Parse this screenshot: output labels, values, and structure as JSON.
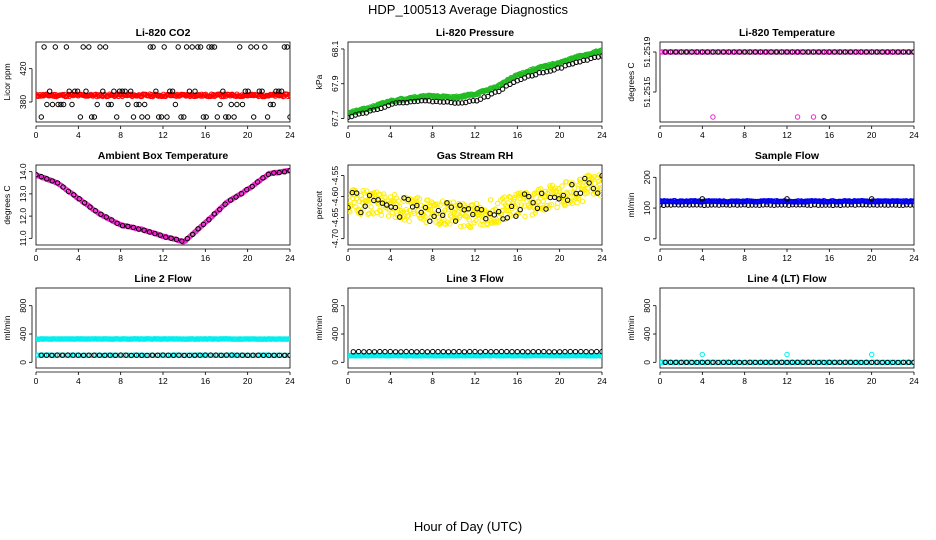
{
  "figure": {
    "title": "HDP_100513  Average Diagnostics",
    "xlabel": "Hour of Day (UTC)"
  },
  "chart_data": [
    {
      "type": "scatter",
      "title": "Li-820 CO2",
      "ylabel": "Licor ppm",
      "xlim": [
        0,
        24
      ],
      "ylim": [
        356,
        452
      ],
      "xticks": [
        "0",
        "4",
        "8",
        "12",
        "16",
        "20",
        "24"
      ],
      "yticks": [
        380,
        420
      ],
      "ytick_labels": [
        "380",
        "420"
      ],
      "series": [
        {
          "color": "#ff0000",
          "pattern": "dense-band",
          "x_range": [
            0,
            24
          ],
          "y_center": 388,
          "y_spread": 1.5,
          "n": 260,
          "seed": 11
        },
        {
          "color": "#000000",
          "pattern": "levels",
          "x_range": [
            0.5,
            24
          ],
          "y_levels": [
            362,
            377,
            393,
            446
          ],
          "n": 90,
          "seed": 3
        }
      ]
    },
    {
      "type": "scatter",
      "title": "Li-820 Pressure",
      "ylabel": "kPa",
      "xlim": [
        0,
        24
      ],
      "ylim": [
        67.68,
        68.14
      ],
      "xticks": [
        "0",
        "4",
        "8",
        "12",
        "16",
        "20",
        "24"
      ],
      "yticks": [
        67.7,
        67.9,
        68.1
      ],
      "ytick_labels": [
        "67.7",
        "67.9",
        "68.1"
      ],
      "series": [
        {
          "color": "#22bb22",
          "pattern": "curve",
          "x": [
            0,
            2,
            4,
            6,
            8,
            10,
            12,
            14,
            16,
            18,
            20,
            22,
            24
          ],
          "y": [
            67.73,
            67.76,
            67.8,
            67.82,
            67.83,
            67.82,
            67.84,
            67.88,
            67.95,
            67.99,
            68.02,
            68.06,
            68.09
          ],
          "spread": 0.006,
          "n": 300,
          "seed": 21
        },
        {
          "color": "#000000",
          "pattern": "curve",
          "x": [
            0,
            2,
            4,
            6,
            8,
            10,
            12,
            14,
            16,
            18,
            20,
            22,
            24
          ],
          "y": [
            67.71,
            67.74,
            67.78,
            67.8,
            67.8,
            67.79,
            67.8,
            67.85,
            67.92,
            67.96,
            67.99,
            68.03,
            68.06
          ],
          "spread": 0.004,
          "n": 70,
          "seed": 22
        }
      ]
    },
    {
      "type": "scatter",
      "title": "Li-820 Temperature",
      "ylabel": "degrees C",
      "xlim": [
        0,
        24
      ],
      "ylim": [
        51.2512,
        51.252
      ],
      "xticks": [
        "0",
        "4",
        "8",
        "12",
        "16",
        "20",
        "24"
      ],
      "yticks": [
        51.2515,
        51.2519
      ],
      "ytick_labels": [
        "51.2515",
        "51.2519"
      ],
      "series": [
        {
          "color": "#ee22cc",
          "pattern": "curve",
          "x": [
            0,
            24
          ],
          "y": [
            51.2519,
            51.2519
          ],
          "spread": 0,
          "n": 120,
          "seed": 31
        },
        {
          "color": "#000000",
          "pattern": "curve",
          "x": [
            0.5,
            24
          ],
          "y": [
            51.2519,
            51.2519
          ],
          "spread": 0,
          "n": 48,
          "seed": 32
        },
        {
          "color": "#ee22cc",
          "pattern": "points",
          "x": [
            5,
            13,
            14.5
          ],
          "y": [
            51.25125,
            51.25125,
            51.25125
          ]
        },
        {
          "color": "#000000",
          "pattern": "points",
          "x": [
            15.5
          ],
          "y": [
            51.25125
          ]
        }
      ]
    },
    {
      "type": "scatter",
      "title": "Ambient Box Temperature",
      "ylabel": "degrees C",
      "xlim": [
        0,
        24
      ],
      "ylim": [
        10.7,
        14.3
      ],
      "xticks": [
        "0",
        "4",
        "8",
        "12",
        "16",
        "20",
        "24"
      ],
      "yticks": [
        11.0,
        12.0,
        13.0,
        14.0
      ],
      "ytick_labels": [
        "11.0",
        "12.0",
        "13.0",
        "14.0"
      ],
      "series": [
        {
          "color": "#ee22cc",
          "pattern": "curve",
          "x": [
            0,
            2,
            4,
            6,
            8,
            10,
            12,
            14,
            16,
            18,
            20,
            22,
            24
          ],
          "y": [
            13.85,
            13.5,
            12.8,
            12.1,
            11.6,
            11.4,
            11.1,
            10.85,
            11.7,
            12.6,
            13.2,
            13.9,
            14.05
          ],
          "spread": 0.02,
          "n": 220,
          "seed": 41
        },
        {
          "color": "#000000",
          "pattern": "curve",
          "x": [
            0,
            2,
            4,
            6,
            8,
            10,
            12,
            14,
            16,
            18,
            20,
            22,
            24
          ],
          "y": [
            13.85,
            13.5,
            12.8,
            12.1,
            11.6,
            11.4,
            11.1,
            10.85,
            11.7,
            12.6,
            13.2,
            13.9,
            14.05
          ],
          "spread": 0.02,
          "n": 48,
          "seed": 42
        }
      ]
    },
    {
      "type": "scatter",
      "title": "Gas Stream RH",
      "ylabel": "percent",
      "xlim": [
        0,
        24
      ],
      "ylim": [
        -4.715,
        -4.525
      ],
      "xticks": [
        "0",
        "4",
        "8",
        "12",
        "16",
        "20",
        "24"
      ],
      "yticks": [
        -4.7,
        -4.65,
        -4.6,
        -4.55
      ],
      "ytick_labels": [
        "-4.70",
        "-4.65",
        "-4.60",
        "-4.55"
      ],
      "series": [
        {
          "color": "#ffee00",
          "pattern": "noise",
          "x": [
            0,
            6,
            12,
            18,
            24
          ],
          "y": [
            -4.61,
            -4.63,
            -4.645,
            -4.61,
            -4.57
          ],
          "spread": 0.03,
          "n": 420,
          "seed": 51
        },
        {
          "color": "#000000",
          "pattern": "noise",
          "x": [
            0,
            6,
            12,
            18,
            24
          ],
          "y": [
            -4.61,
            -4.63,
            -4.645,
            -4.61,
            -4.57
          ],
          "spread": 0.025,
          "n": 60,
          "seed": 52
        }
      ]
    },
    {
      "type": "scatter",
      "title": "Sample Flow",
      "ylabel": "ml/min",
      "xlim": [
        0,
        24
      ],
      "ylim": [
        -20,
        240
      ],
      "xticks": [
        "0",
        "4",
        "8",
        "12",
        "16",
        "20",
        "24"
      ],
      "yticks": [
        0,
        100,
        200
      ],
      "ytick_labels": [
        "0",
        "100",
        "200"
      ],
      "series": [
        {
          "color": "#000000",
          "pattern": "curve",
          "x": [
            0,
            24
          ],
          "y": [
            110,
            110
          ],
          "spread": 1,
          "n": 70,
          "seed": 61
        },
        {
          "color": "#0000ee",
          "pattern": "curve",
          "x": [
            0,
            24
          ],
          "y": [
            122,
            122
          ],
          "spread": 2,
          "n": 240,
          "seed": 62
        },
        {
          "color": "#000000",
          "pattern": "points",
          "x": [
            4,
            12,
            20
          ],
          "y": [
            130,
            130,
            130
          ]
        }
      ]
    },
    {
      "type": "scatter",
      "title": "Line 2 Flow",
      "ylabel": "ml/min",
      "xlim": [
        0,
        24
      ],
      "ylim": [
        -80,
        1050
      ],
      "xticks": [
        "0",
        "4",
        "8",
        "12",
        "16",
        "20",
        "24"
      ],
      "yticks": [
        0,
        400,
        800
      ],
      "ytick_labels": [
        "0",
        "400",
        "800"
      ],
      "series": [
        {
          "color": "#00eeee",
          "pattern": "curve",
          "x": [
            0,
            24
          ],
          "y": [
            330,
            330
          ],
          "spread": 3,
          "n": 240,
          "seed": 71
        },
        {
          "color": "#00eeee",
          "pattern": "curve",
          "x": [
            0,
            24
          ],
          "y": [
            100,
            100
          ],
          "spread": 2,
          "n": 120,
          "seed": 72
        },
        {
          "color": "#000000",
          "pattern": "curve",
          "x": [
            0.5,
            24
          ],
          "y": [
            100,
            100
          ],
          "spread": 2,
          "n": 48,
          "seed": 73
        }
      ]
    },
    {
      "type": "scatter",
      "title": "Line 3 Flow",
      "ylabel": "ml/min",
      "xlim": [
        0,
        24
      ],
      "ylim": [
        -80,
        1050
      ],
      "xticks": [
        "0",
        "4",
        "8",
        "12",
        "16",
        "20",
        "24"
      ],
      "yticks": [
        0,
        400,
        800
      ],
      "ytick_labels": [
        "0",
        "400",
        "800"
      ],
      "series": [
        {
          "color": "#00eeee",
          "pattern": "curve",
          "x": [
            0,
            24
          ],
          "y": [
            95,
            95
          ],
          "spread": 3,
          "n": 240,
          "seed": 81
        },
        {
          "color": "#000000",
          "pattern": "curve",
          "x": [
            0.5,
            24
          ],
          "y": [
            150,
            150
          ],
          "spread": 2,
          "n": 48,
          "seed": 82
        }
      ]
    },
    {
      "type": "scatter",
      "title": "Line 4 (LT) Flow",
      "ylabel": "ml/min",
      "xlim": [
        0,
        24
      ],
      "ylim": [
        -80,
        1050
      ],
      "xticks": [
        "0",
        "4",
        "8",
        "12",
        "16",
        "20",
        "24"
      ],
      "yticks": [
        0,
        400,
        800
      ],
      "ytick_labels": [
        "0",
        "400",
        "800"
      ],
      "series": [
        {
          "color": "#00eeee",
          "pattern": "curve",
          "x": [
            0,
            24
          ],
          "y": [
            0,
            0
          ],
          "spread": 2,
          "n": 120,
          "seed": 91
        },
        {
          "color": "#000000",
          "pattern": "curve",
          "x": [
            0.5,
            24
          ],
          "y": [
            0,
            0
          ],
          "spread": 1,
          "n": 48,
          "seed": 92
        },
        {
          "color": "#00eeee",
          "pattern": "points",
          "x": [
            4,
            12,
            20
          ],
          "y": [
            110,
            110,
            110
          ]
        }
      ]
    }
  ]
}
